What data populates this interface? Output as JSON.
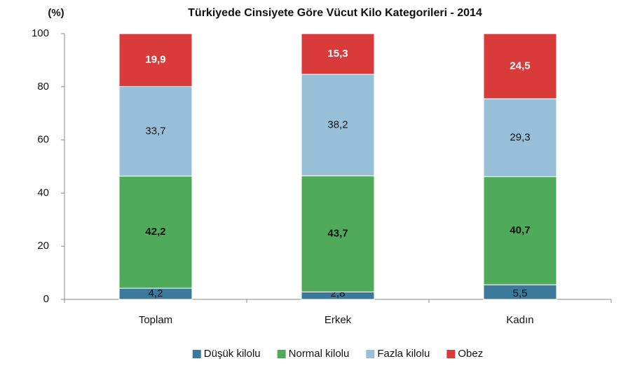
{
  "chart_data": {
    "type": "stacked_bar",
    "title": "Türkiyede Cinsiyete Göre Vücut Kilo Kategorileri - 2014",
    "y_label": "(%)",
    "categories": [
      "Toplam",
      "Erkek",
      "Kadın"
    ],
    "series": [
      {
        "name": "Düşük kilolu",
        "color": "#3c7a9b",
        "values": [
          4.2,
          2.8,
          5.5
        ],
        "value_labels": [
          "4,2",
          "2,8",
          "5,5"
        ]
      },
      {
        "name": "Normal kilolu",
        "color": "#4fab59",
        "values": [
          42.2,
          43.7,
          40.7
        ],
        "value_labels": [
          "42,2",
          "43,7",
          "40,7"
        ]
      },
      {
        "name": "Fazla kilolu",
        "color": "#97bfd8",
        "values": [
          33.7,
          38.2,
          29.3
        ],
        "value_labels": [
          "33,7",
          "38,2",
          "29,3"
        ]
      },
      {
        "name": "Obez",
        "color": "#d93b3b",
        "values": [
          19.9,
          15.3,
          24.5
        ],
        "value_labels": [
          "19,9",
          "15,3",
          "24,5"
        ]
      }
    ],
    "ylim": [
      0,
      100
    ],
    "yticks": [
      0,
      20,
      40,
      60,
      80,
      100
    ],
    "grid": false,
    "legend": "bottom"
  }
}
